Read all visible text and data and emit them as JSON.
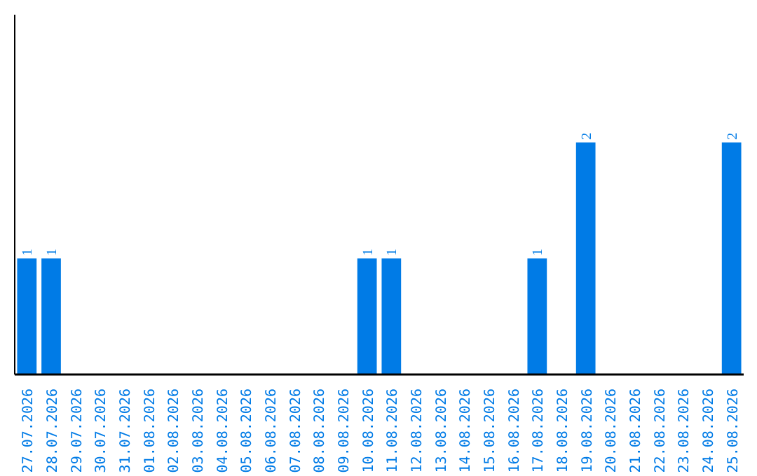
{
  "chart_data": {
    "type": "bar",
    "categories": [
      "27.07.2026",
      "28.07.2026",
      "29.07.2026",
      "30.07.2026",
      "31.07.2026",
      "01.08.2026",
      "02.08.2026",
      "03.08.2026",
      "04.08.2026",
      "05.08.2026",
      "06.08.2026",
      "07.08.2026",
      "08.08.2026",
      "09.08.2026",
      "10.08.2026",
      "11.08.2026",
      "12.08.2026",
      "13.08.2026",
      "14.08.2026",
      "15.08.2026",
      "16.08.2026",
      "17.08.2026",
      "18.08.2026",
      "19.08.2026",
      "20.08.2026",
      "21.08.2026",
      "22.08.2026",
      "23.08.2026",
      "24.08.2026",
      "25.08.2026"
    ],
    "values": [
      1,
      1,
      0,
      0,
      0,
      0,
      0,
      0,
      0,
      0,
      0,
      0,
      0,
      0,
      1,
      1,
      0,
      0,
      0,
      0,
      0,
      1,
      0,
      2,
      0,
      0,
      0,
      0,
      0,
      2
    ],
    "value_labels": [
      "1",
      "1",
      null,
      null,
      null,
      null,
      null,
      null,
      null,
      null,
      null,
      null,
      null,
      null,
      "1",
      "1",
      null,
      null,
      null,
      null,
      null,
      "1",
      null,
      "2",
      null,
      null,
      null,
      null,
      null,
      "2"
    ],
    "color": "#007be6",
    "ylim": [
      0,
      3.1
    ],
    "tick_labels": "x"
  }
}
